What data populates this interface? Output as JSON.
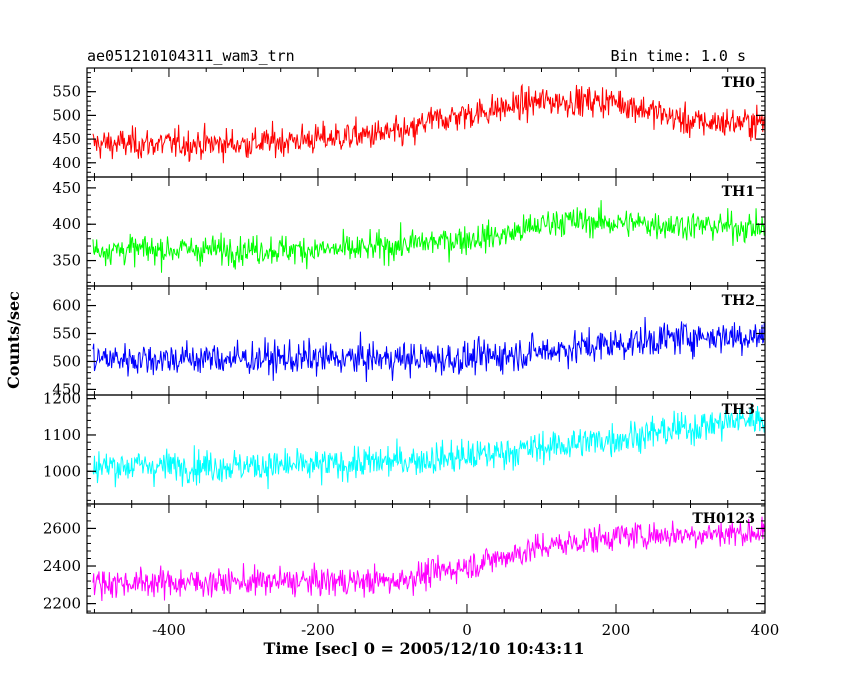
{
  "chart_data": {
    "type": "line",
    "title_left": "ae051210104311_wam3_trn",
    "title_right": "Bin time: 1.0 s",
    "xlabel": "Time [sec] 0 = 2005/12/10 10:43:11",
    "ylabel": "Counts/sec",
    "xlim": [
      -510,
      400
    ],
    "xticks": [
      -400,
      -200,
      0,
      200,
      400
    ],
    "bin_time": 1.0,
    "grid": false,
    "panels": [
      {
        "name": "TH0",
        "color": "#ff0000",
        "ylim": [
          370,
          600
        ],
        "yticks": [
          400,
          450,
          500,
          550
        ],
        "trend": [
          [
            -510,
            440
          ],
          [
            -300,
            440
          ],
          [
            -70,
            465
          ],
          [
            -60,
            485
          ],
          [
            100,
            530
          ],
          [
            200,
            530
          ],
          [
            300,
            485
          ],
          [
            400,
            485
          ]
        ],
        "noise": 32
      },
      {
        "name": "TH1",
        "color": "#00ff00",
        "ylim": [
          315,
          465
        ],
        "yticks": [
          350,
          400,
          450
        ],
        "trend": [
          [
            -510,
            365
          ],
          [
            -150,
            365
          ],
          [
            50,
            385
          ],
          [
            120,
            405
          ],
          [
            250,
            400
          ],
          [
            400,
            395
          ]
        ],
        "noise": 20
      },
      {
        "name": "TH2",
        "color": "#0000ff",
        "ylim": [
          440,
          635
        ],
        "yticks": [
          450,
          500,
          550,
          600
        ],
        "trend": [
          [
            -510,
            505
          ],
          [
            -100,
            505
          ],
          [
            0,
            505
          ],
          [
            150,
            525
          ],
          [
            300,
            545
          ],
          [
            400,
            545
          ]
        ],
        "noise": 30
      },
      {
        "name": "TH3",
        "color": "#00ffff",
        "ylim": [
          910,
          1210
        ],
        "yticks": [
          1000,
          1100,
          1200
        ],
        "trend": [
          [
            -510,
            1015
          ],
          [
            -200,
            1015
          ],
          [
            0,
            1040
          ],
          [
            200,
            1090
          ],
          [
            400,
            1150
          ]
        ],
        "noise": 45
      },
      {
        "name": "TH0123",
        "color": "#ff00ff",
        "ylim": [
          2150,
          2730
        ],
        "yticks": [
          2200,
          2400,
          2600
        ],
        "trend": [
          [
            -510,
            2310
          ],
          [
            -100,
            2320
          ],
          [
            0,
            2400
          ],
          [
            100,
            2500
          ],
          [
            200,
            2560
          ],
          [
            400,
            2580
          ]
        ],
        "noise": 75
      }
    ]
  }
}
